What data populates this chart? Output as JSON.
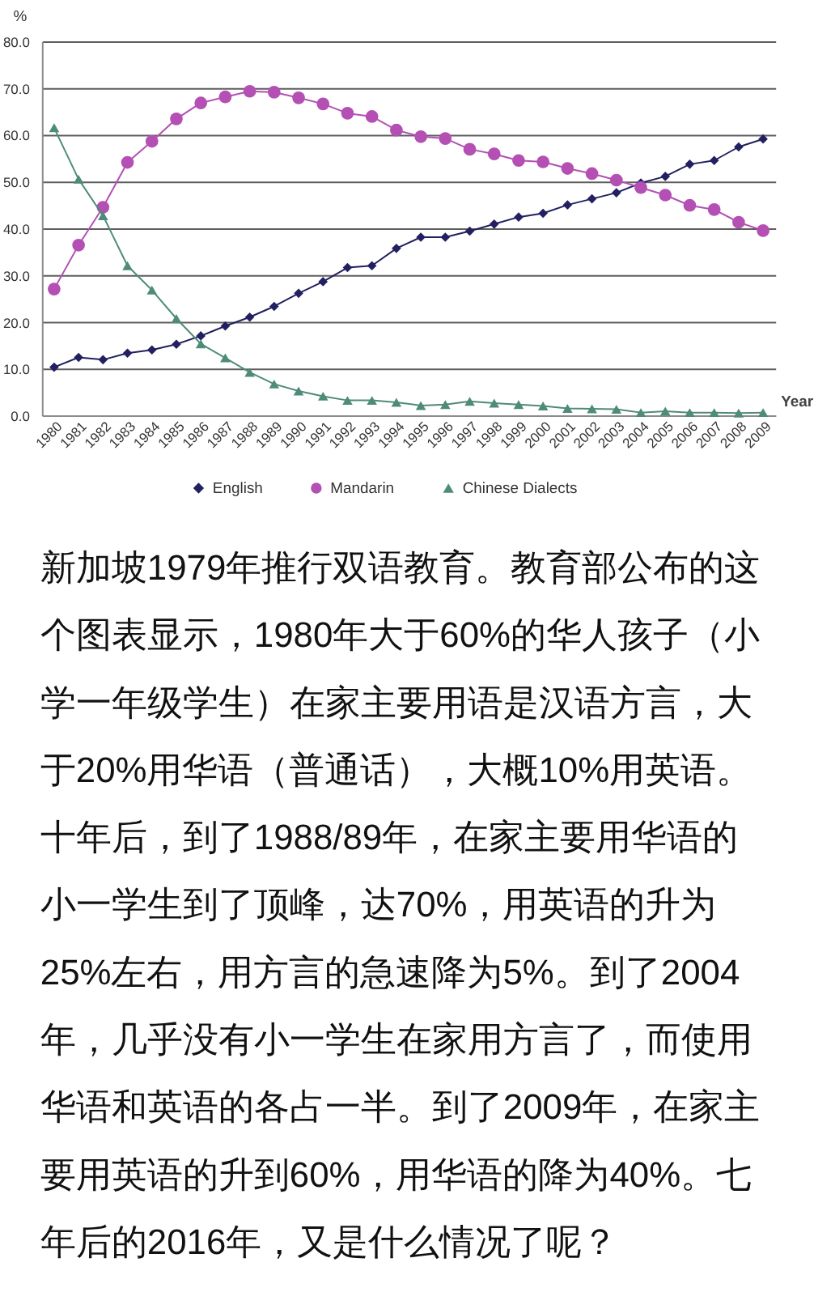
{
  "chart_data": {
    "type": "line",
    "ylabel": "%",
    "xlabel": "Year",
    "categories": [
      "1980",
      "1981",
      "1982",
      "1983",
      "1984",
      "1985",
      "1986",
      "1987",
      "1988",
      "1989",
      "1990",
      "1991",
      "1992",
      "1993",
      "1994",
      "1995",
      "1996",
      "1997",
      "1998",
      "1999",
      "2000",
      "2001",
      "2002",
      "2003",
      "2004",
      "2005",
      "2006",
      "2007",
      "2008",
      "2009"
    ],
    "ylim": [
      0,
      80
    ],
    "yticks": [
      {
        "value": 0,
        "label": "0.0"
      },
      {
        "value": 10,
        "label": "10.0"
      },
      {
        "value": 20,
        "label": "20.0"
      },
      {
        "value": 30,
        "label": "30.0"
      },
      {
        "value": 40,
        "label": "40.0"
      },
      {
        "value": 50,
        "label": "50.0"
      },
      {
        "value": 60,
        "label": "60.0"
      },
      {
        "value": 70,
        "label": "70.0"
      },
      {
        "value": 80,
        "label": "80.0"
      }
    ],
    "grid": "y",
    "legend": "bottom",
    "series": [
      {
        "name": "English",
        "color": "#222060",
        "marker": "diamond",
        "values": [
          10.3,
          12.4,
          11.9,
          13.3,
          14.0,
          15.2,
          17.0,
          19.1,
          21.0,
          23.3,
          26.1,
          28.6,
          31.6,
          32.0,
          35.7,
          38.1,
          38.1,
          39.4,
          40.9,
          42.4,
          43.2,
          45.0,
          46.3,
          47.6,
          49.7,
          51.1,
          53.7,
          54.5,
          57.4,
          59.1
        ]
      },
      {
        "name": "Mandarin",
        "color": "#b44fb4",
        "marker": "circle",
        "values": [
          27.0,
          36.4,
          44.5,
          54.1,
          58.6,
          63.4,
          66.8,
          68.1,
          69.3,
          69.1,
          67.9,
          66.6,
          64.6,
          63.9,
          61.0,
          59.6,
          59.2,
          56.9,
          55.9,
          54.5,
          54.2,
          52.8,
          51.7,
          50.3,
          48.7,
          47.1,
          44.9,
          44.0,
          41.3,
          39.5
        ]
      },
      {
        "name": "Chinese Dialects",
        "color": "#4f8b7a",
        "marker": "triangle",
        "values": [
          61.5,
          50.5,
          42.7,
          32.0,
          26.8,
          20.7,
          15.3,
          12.3,
          9.2,
          6.7,
          5.2,
          4.1,
          3.2,
          3.2,
          2.8,
          2.1,
          2.3,
          3.0,
          2.6,
          2.3,
          2.0,
          1.5,
          1.4,
          1.3,
          0.6,
          0.9,
          0.6,
          0.6,
          0.5,
          0.6
        ]
      }
    ],
    "annotations": [
      "新加坡1979年推行双语教育。教育部公布的这个图表显示，1980年大于60%的华人孩子（小学一年级学生）在家主要用语是汉语方言，大于20%用华语（普通话），大概10%用英语。十年后，到了1988/89年，在家主要用华语的小一学生到了顶峰，达70%，用英语的升为25%左右，用方言的急速降为5%。到了2004年，几乎没有小一学生在家用方言了，而使用华语和英语的各占一半。到了2009年，在家主要用英语的升到60%，用华语的降为40%。七年后的2016年，又是什么情况了呢？"
    ]
  }
}
